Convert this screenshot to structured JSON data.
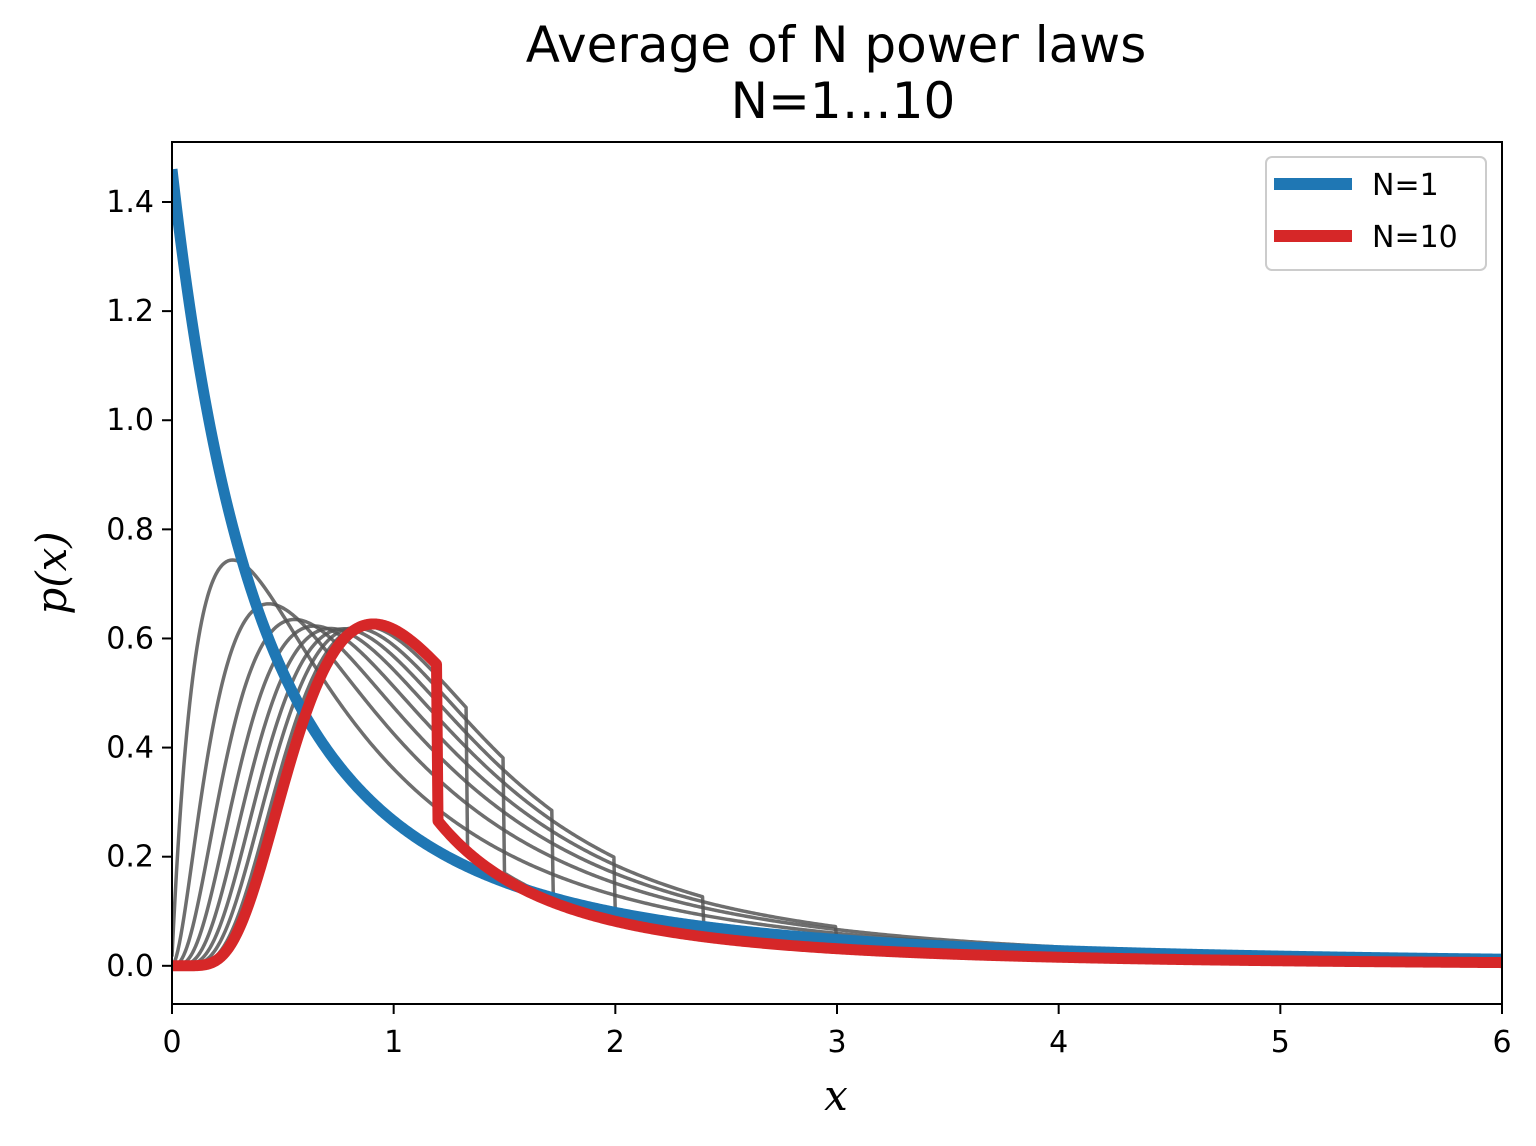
{
  "chart_data": {
    "type": "line",
    "title": "Average of N power laws",
    "subtitle": "N=1…10",
    "xlabel": "x",
    "ylabel": "p(x)",
    "xlim": [
      0,
      6
    ],
    "ylim": [
      -0.07,
      1.51
    ],
    "xticks": [
      "0",
      "1",
      "2",
      "3",
      "4",
      "5",
      "6"
    ],
    "yticks": [
      "0.0",
      "0.2",
      "0.4",
      "0.6",
      "0.8",
      "1.0",
      "1.2",
      "1.4"
    ],
    "grid": false,
    "legend_position": "top-right",
    "legend": [
      {
        "label": "N=1",
        "color": "#1f77b4"
      },
      {
        "label": "N=10",
        "color": "#d62728"
      }
    ],
    "distribution": {
      "alpha": 1.46
    },
    "series": [
      {
        "name": "N=1",
        "N": 1,
        "color": "#1f77b4",
        "emphasis": true
      },
      {
        "N": 2,
        "color": "#555555",
        "emphasis": false
      },
      {
        "N": 3,
        "color": "#555555",
        "emphasis": false
      },
      {
        "N": 4,
        "color": "#555555",
        "emphasis": false
      },
      {
        "N": 5,
        "color": "#555555",
        "emphasis": false
      },
      {
        "N": 6,
        "color": "#555555",
        "emphasis": false
      },
      {
        "N": 7,
        "color": "#555555",
        "emphasis": false
      },
      {
        "N": 8,
        "color": "#555555",
        "emphasis": false
      },
      {
        "N": 9,
        "color": "#555555",
        "emphasis": false
      },
      {
        "name": "N=10",
        "N": 10,
        "color": "#d62728",
        "emphasis": true
      }
    ]
  }
}
